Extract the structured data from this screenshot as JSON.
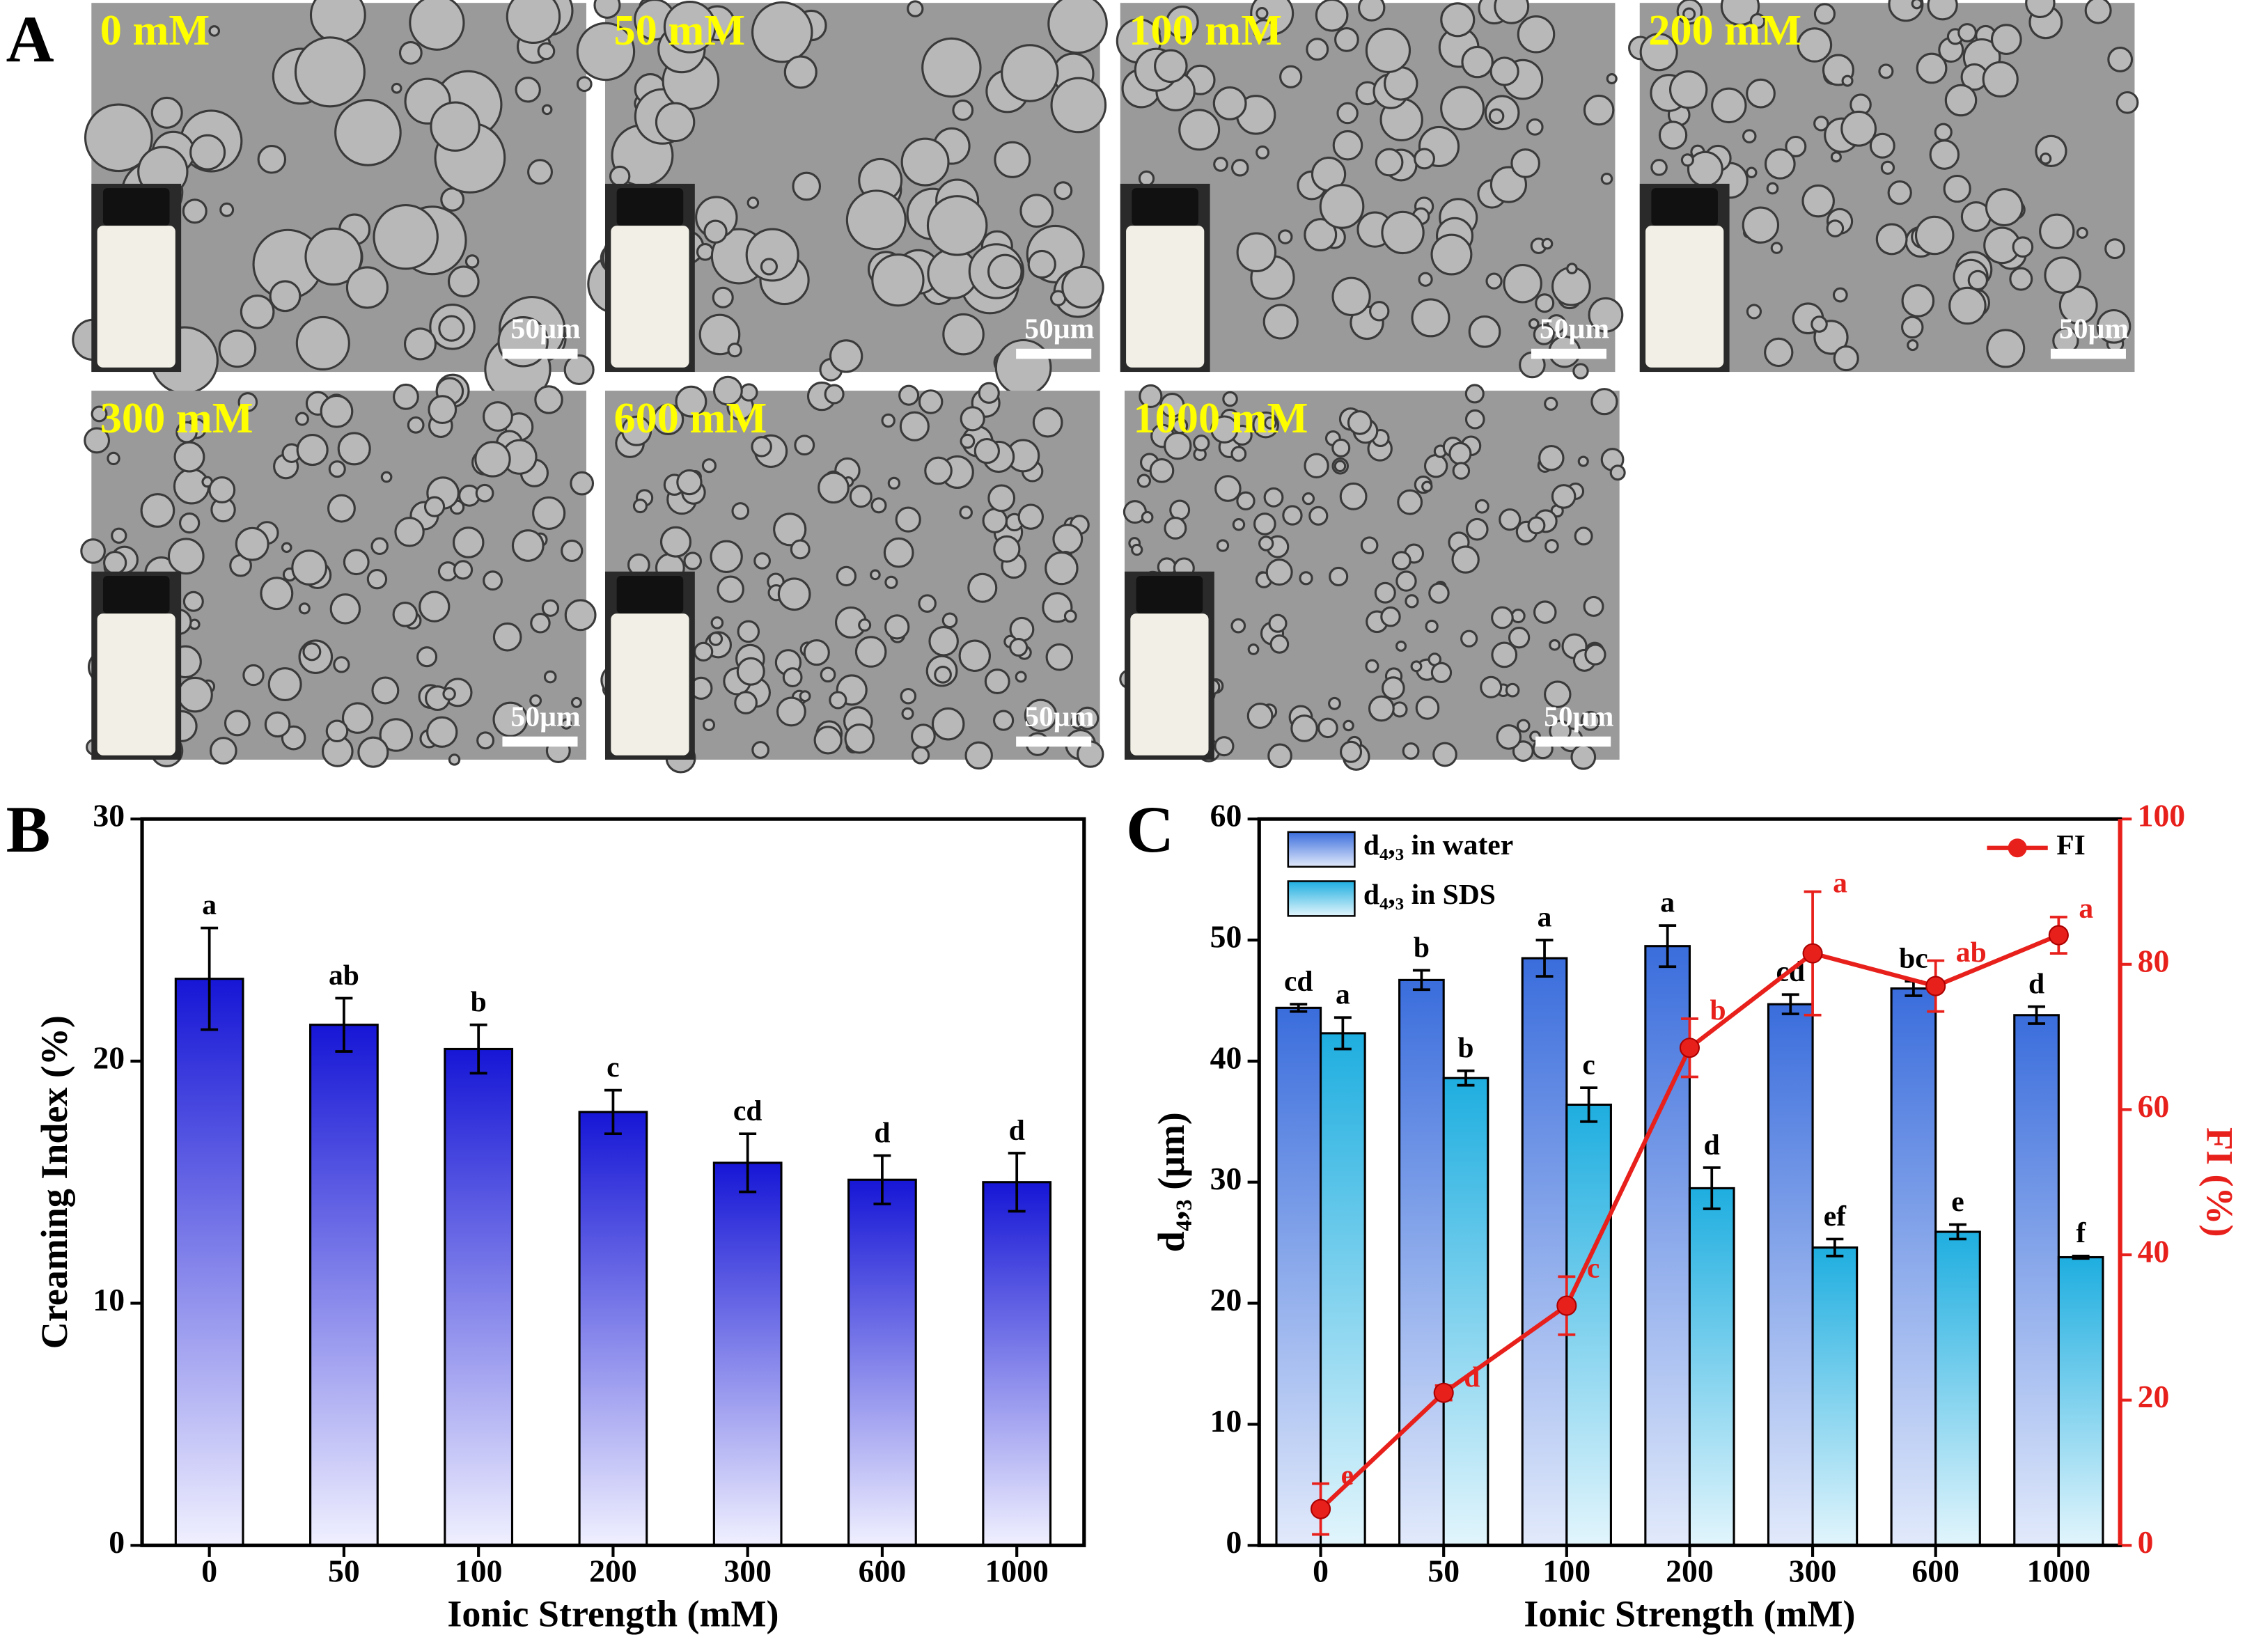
{
  "panel_labels": [
    "A",
    "B",
    "C"
  ],
  "micrographs": [
    {
      "label": "0 mM",
      "scale_bar": "50µm"
    },
    {
      "label": "50 mM",
      "scale_bar": "50µm"
    },
    {
      "label": "100 mM",
      "scale_bar": "50µm"
    },
    {
      "label": "200 mM",
      "scale_bar": "50µm"
    },
    {
      "label": "300 mM",
      "scale_bar": "50µm"
    },
    {
      "label": "600 mM",
      "scale_bar": "50µm"
    },
    {
      "label": "1000 mM",
      "scale_bar": "50µm"
    }
  ],
  "chart_data": [
    {
      "type": "bar",
      "x_label": "Ionic Strength (mM)",
      "y_label": "Creaming Index (%)",
      "categories": [
        "0",
        "50",
        "100",
        "200",
        "300",
        "600",
        "1000"
      ],
      "series": [
        {
          "name": null,
          "color": "#1a1ad8",
          "values": [
            23.4,
            21.5,
            20.5,
            17.9,
            15.8,
            15.1,
            15.0
          ],
          "errors": [
            2.1,
            1.1,
            1.0,
            0.9,
            1.2,
            1.0,
            1.2
          ],
          "annotations": [
            "a",
            "ab",
            "b",
            "c",
            "cd",
            "d",
            "d"
          ]
        }
      ],
      "ylim": [
        0,
        30
      ],
      "yticks": [
        0,
        10,
        20,
        30
      ]
    },
    {
      "type": "bar",
      "x_label": "Ionic Strength (mM)",
      "y_label": "d₄,₃ (μm)",
      "y2_label": "FI (%)",
      "categories": [
        "0",
        "50",
        "100",
        "200",
        "300",
        "600",
        "1000"
      ],
      "series": [
        {
          "name": "d₄,₃ in water",
          "color": "#3a6fe0",
          "values": [
            44.4,
            46.7,
            48.5,
            49.5,
            44.7,
            46.0,
            43.8
          ],
          "errors": [
            0.3,
            0.8,
            1.5,
            1.7,
            0.8,
            0.6,
            0.7
          ],
          "annotations": [
            "cd",
            "b",
            "a",
            "a",
            "cd",
            "bc",
            "d"
          ]
        },
        {
          "name": "d₄,₃ in SDS",
          "color": "#22b0e0",
          "values": [
            42.3,
            38.6,
            36.4,
            29.5,
            24.6,
            25.9,
            23.8
          ],
          "errors": [
            1.3,
            0.6,
            1.4,
            1.7,
            0.7,
            0.6,
            0.1
          ],
          "annotations": [
            "a",
            "b",
            "c",
            "d",
            "ef",
            "e",
            "f"
          ]
        },
        {
          "name": "FI",
          "type": "line",
          "axis": "y2",
          "color": "#e8201c",
          "values": [
            5,
            21,
            33,
            68.5,
            81.5,
            77,
            84
          ],
          "errors": [
            3.5,
            1,
            4,
            4,
            8.5,
            3.5,
            2.5
          ],
          "annotations": [
            "e",
            "d",
            "c",
            "b",
            "a",
            "ab",
            "a"
          ]
        }
      ],
      "legend": "upper left",
      "ylim": [
        0,
        60
      ],
      "yticks": [
        0,
        10,
        20,
        30,
        40,
        50,
        60
      ],
      "y2lim": [
        0,
        100
      ],
      "y2ticks": [
        0,
        20,
        40,
        60,
        80,
        100
      ]
    }
  ]
}
